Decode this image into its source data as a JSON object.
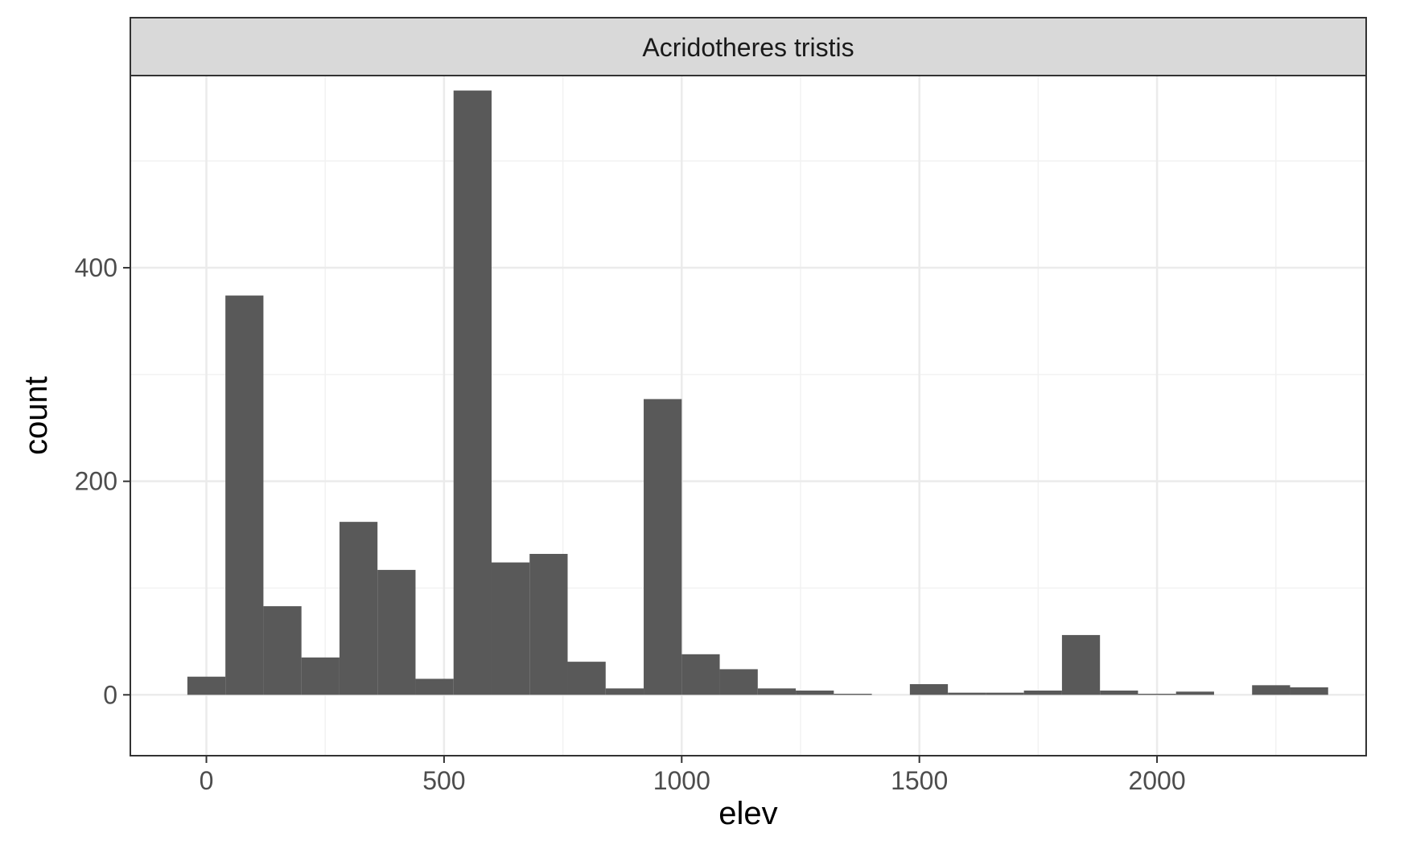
{
  "chart_data": {
    "type": "bar",
    "facet_label": "Acridotheres tristis",
    "xlabel": "elev",
    "ylabel": "count",
    "xlim": [
      -160,
      2440
    ],
    "ylim": [
      -57,
      580
    ],
    "x_ticks": [
      0,
      500,
      1000,
      1500,
      2000
    ],
    "y_ticks": [
      0,
      200,
      400
    ],
    "grid": true,
    "bin_width": 80,
    "series": [
      {
        "values": [
          {
            "x0": -40,
            "x1": 40,
            "count": 17
          },
          {
            "x0": 40,
            "x1": 120,
            "count": 374
          },
          {
            "x0": 120,
            "x1": 200,
            "count": 83
          },
          {
            "x0": 200,
            "x1": 280,
            "count": 35
          },
          {
            "x0": 280,
            "x1": 360,
            "count": 162
          },
          {
            "x0": 360,
            "x1": 440,
            "count": 117
          },
          {
            "x0": 440,
            "x1": 520,
            "count": 15
          },
          {
            "x0": 520,
            "x1": 600,
            "count": 566
          },
          {
            "x0": 600,
            "x1": 680,
            "count": 124
          },
          {
            "x0": 680,
            "x1": 760,
            "count": 132
          },
          {
            "x0": 760,
            "x1": 840,
            "count": 31
          },
          {
            "x0": 840,
            "x1": 920,
            "count": 6
          },
          {
            "x0": 920,
            "x1": 1000,
            "count": 277
          },
          {
            "x0": 1000,
            "x1": 1080,
            "count": 38
          },
          {
            "x0": 1080,
            "x1": 1160,
            "count": 24
          },
          {
            "x0": 1160,
            "x1": 1240,
            "count": 6
          },
          {
            "x0": 1240,
            "x1": 1320,
            "count": 4
          },
          {
            "x0": 1320,
            "x1": 1400,
            "count": 1
          },
          {
            "x0": 1400,
            "x1": 1480,
            "count": 0
          },
          {
            "x0": 1480,
            "x1": 1560,
            "count": 10
          },
          {
            "x0": 1560,
            "x1": 1640,
            "count": 2
          },
          {
            "x0": 1640,
            "x1": 1720,
            "count": 2
          },
          {
            "x0": 1720,
            "x1": 1800,
            "count": 4
          },
          {
            "x0": 1800,
            "x1": 1880,
            "count": 56
          },
          {
            "x0": 1880,
            "x1": 1960,
            "count": 4
          },
          {
            "x0": 1960,
            "x1": 2040,
            "count": 1
          },
          {
            "x0": 2040,
            "x1": 2120,
            "count": 3
          },
          {
            "x0": 2120,
            "x1": 2200,
            "count": 0
          },
          {
            "x0": 2200,
            "x1": 2280,
            "count": 9
          },
          {
            "x0": 2280,
            "x1": 2360,
            "count": 7
          }
        ]
      }
    ],
    "colors": {
      "bar": "#595959",
      "grid_major": "#ebebeb",
      "grid_minor": "#f2f2f2",
      "border": "#333333",
      "strip_fill": "#d9d9d9"
    }
  }
}
